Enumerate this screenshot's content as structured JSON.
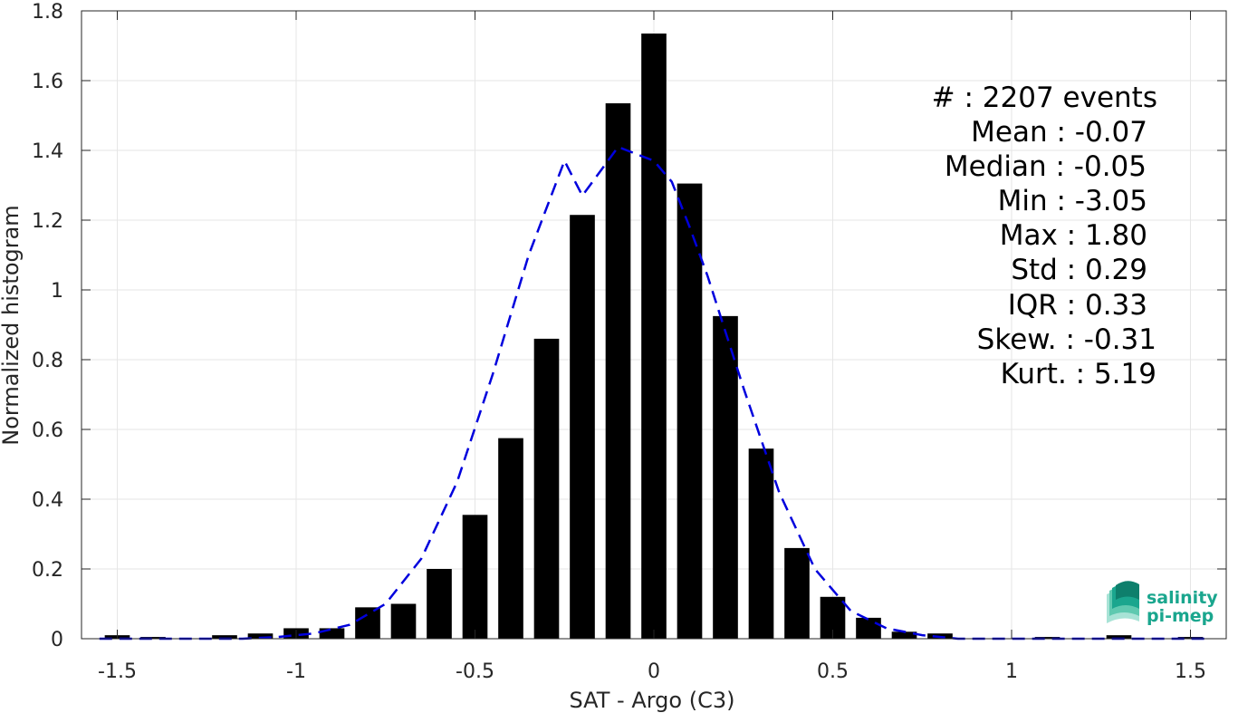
{
  "chart_data": {
    "type": "bar",
    "xlabel": "SAT - Argo (C3)",
    "ylabel": "Normalized histogram",
    "xlim": [
      -1.6,
      1.6
    ],
    "ylim": [
      0,
      1.8
    ],
    "xticks": [
      -1.5,
      -1,
      -0.5,
      0,
      0.5,
      1,
      1.5
    ],
    "xtick_labels": [
      "-1.5",
      "-1",
      "-0.5",
      "0",
      "0.5",
      "1",
      "1.5"
    ],
    "yticks": [
      0,
      0.2,
      0.4,
      0.6,
      0.8,
      1,
      1.2,
      1.4,
      1.6,
      1.8
    ],
    "ytick_labels": [
      "0",
      "0.2",
      "0.4",
      "0.6",
      "0.8",
      "1",
      "1.2",
      "1.4",
      "1.6",
      "1.8"
    ],
    "grid": true,
    "bin_width": 0.1,
    "bar_color": "#000000",
    "bins": [
      {
        "x": -1.5,
        "y": 0.01
      },
      {
        "x": -1.4,
        "y": 0.005
      },
      {
        "x": -1.3,
        "y": 0.0
      },
      {
        "x": -1.2,
        "y": 0.01
      },
      {
        "x": -1.1,
        "y": 0.015
      },
      {
        "x": -1.0,
        "y": 0.03
      },
      {
        "x": -0.9,
        "y": 0.03
      },
      {
        "x": -0.8,
        "y": 0.09
      },
      {
        "x": -0.7,
        "y": 0.1
      },
      {
        "x": -0.6,
        "y": 0.2
      },
      {
        "x": -0.5,
        "y": 0.355
      },
      {
        "x": -0.4,
        "y": 0.575
      },
      {
        "x": -0.3,
        "y": 0.86
      },
      {
        "x": -0.2,
        "y": 1.215
      },
      {
        "x": -0.1,
        "y": 1.535
      },
      {
        "x": 0.0,
        "y": 1.735
      },
      {
        "x": 0.1,
        "y": 1.305
      },
      {
        "x": 0.2,
        "y": 0.925
      },
      {
        "x": 0.3,
        "y": 0.545
      },
      {
        "x": 0.4,
        "y": 0.26
      },
      {
        "x": 0.5,
        "y": 0.12
      },
      {
        "x": 0.6,
        "y": 0.06
      },
      {
        "x": 0.7,
        "y": 0.02
      },
      {
        "x": 0.8,
        "y": 0.015
      },
      {
        "x": 0.9,
        "y": 0.0
      },
      {
        "x": 1.0,
        "y": 0.0
      },
      {
        "x": 1.1,
        "y": 0.005
      },
      {
        "x": 1.2,
        "y": 0.0
      },
      {
        "x": 1.3,
        "y": 0.01
      },
      {
        "x": 1.4,
        "y": 0.0
      },
      {
        "x": 1.5,
        "y": 0.005
      }
    ],
    "fit_curve": {
      "color": "#0000dd",
      "style": "dashed",
      "x": [
        -1.55,
        -1.45,
        -1.35,
        -1.25,
        -1.15,
        -1.05,
        -0.95,
        -0.85,
        -0.75,
        -0.65,
        -0.55,
        -0.45,
        -0.35,
        -0.25,
        -0.2,
        -0.15,
        -0.1,
        -0.05,
        0.0,
        0.05,
        0.1,
        0.15,
        0.25,
        0.35,
        0.45,
        0.55,
        0.65,
        0.75,
        0.85,
        0.95,
        1.05,
        1.15,
        1.25,
        1.35,
        1.45,
        1.55
      ],
      "y": [
        0.0,
        0.0,
        0.0,
        0.0,
        0.0,
        0.005,
        0.015,
        0.04,
        0.1,
        0.23,
        0.45,
        0.76,
        1.1,
        1.37,
        1.27,
        1.34,
        1.41,
        1.39,
        1.37,
        1.31,
        1.18,
        1.04,
        0.72,
        0.42,
        0.2,
        0.08,
        0.03,
        0.01,
        0.0,
        0.0,
        0.0,
        0.0,
        0.0,
        0.0,
        0.0,
        0.0
      ]
    },
    "annotations": [
      "#  : 2207 events",
      "Mean : -0.07",
      "Median : -0.05",
      "Min : -3.05",
      "Max : 1.80",
      "Std : 0.29",
      "IQR : 0.33",
      "Skew. : -0.31",
      "Kurt. : 5.19"
    ]
  },
  "logo": {
    "line1": "salinity",
    "line2": "pi-mep",
    "color": "#1aa68e"
  }
}
